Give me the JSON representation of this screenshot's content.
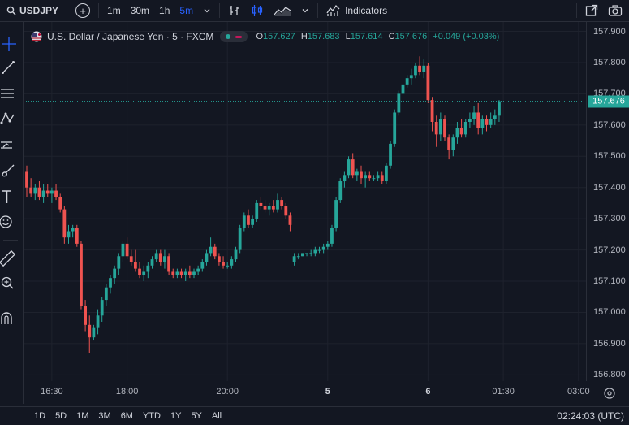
{
  "toolbar": {
    "symbol": "USDJPY",
    "intervals": [
      {
        "label": "1m",
        "active": false
      },
      {
        "label": "30m",
        "active": false
      },
      {
        "label": "1h",
        "active": false
      },
      {
        "label": "5m",
        "active": true
      }
    ],
    "indicators_label": "Indicators"
  },
  "legend": {
    "title": "U.S. Dollar / Japanese Yen · 5 · FXCM",
    "open_key": "O",
    "open": "157.627",
    "high_key": "H",
    "high": "157.683",
    "low_key": "L",
    "low": "157.614",
    "close_key": "C",
    "close": "157.676",
    "change": "+0.049 (+0.03%)"
  },
  "colors": {
    "up": "#26a69a",
    "down": "#ef5350",
    "background": "#131722",
    "grid": "#1e222d",
    "accent": "#2962ff"
  },
  "price_axis": {
    "labels": [
      "157.900",
      "157.800",
      "157.700",
      "157.600",
      "157.500",
      "157.400",
      "157.300",
      "157.200",
      "157.100",
      "157.000",
      "156.900",
      "156.800"
    ],
    "last_price": "157.676"
  },
  "time_axis": {
    "labels": [
      "16:30",
      "18:00",
      "20:00",
      "5",
      "6",
      "01:30",
      "03:00"
    ]
  },
  "bottom_bar": {
    "ranges": [
      "1D",
      "5D",
      "1M",
      "3M",
      "6M",
      "YTD",
      "1Y",
      "5Y",
      "All"
    ],
    "clock": "02:24:03 (UTC)"
  },
  "chart_data": {
    "type": "candlestick",
    "ylim": [
      156.78,
      157.93
    ],
    "x_ticks": [
      {
        "label": "16:30",
        "index": 6
      },
      {
        "label": "18:00",
        "index": 24
      },
      {
        "label": "20:00",
        "index": 48
      },
      {
        "label": "5",
        "index": 72
      },
      {
        "label": "6",
        "index": 96
      },
      {
        "label": "01:30",
        "index": 114
      },
      {
        "label": "03:00",
        "index": 132
      }
    ],
    "candles": [
      [
        157.45,
        157.47,
        157.37,
        157.4
      ],
      [
        157.4,
        157.43,
        157.37,
        157.38
      ],
      [
        157.38,
        157.41,
        157.36,
        157.4
      ],
      [
        157.4,
        157.42,
        157.36,
        157.37
      ],
      [
        157.37,
        157.41,
        157.35,
        157.39
      ],
      [
        157.39,
        157.41,
        157.37,
        157.38
      ],
      [
        157.38,
        157.4,
        157.35,
        157.39
      ],
      [
        157.39,
        157.41,
        157.36,
        157.37
      ],
      [
        157.37,
        157.38,
        157.32,
        157.33
      ],
      [
        157.33,
        157.34,
        157.22,
        157.24
      ],
      [
        157.24,
        157.28,
        157.22,
        157.26
      ],
      [
        157.26,
        157.28,
        157.24,
        157.27
      ],
      [
        157.27,
        157.28,
        157.21,
        157.22
      ],
      [
        157.22,
        157.23,
        157.01,
        157.02
      ],
      [
        157.02,
        157.04,
        156.94,
        156.96
      ],
      [
        156.96,
        156.99,
        156.87,
        156.92
      ],
      [
        156.92,
        156.96,
        156.91,
        156.95
      ],
      [
        156.95,
        157.01,
        156.93,
        156.99
      ],
      [
        156.99,
        157.05,
        156.97,
        157.04
      ],
      [
        157.04,
        157.09,
        157.02,
        157.08
      ],
      [
        157.08,
        157.12,
        157.06,
        157.11
      ],
      [
        157.11,
        157.15,
        157.09,
        157.14
      ],
      [
        157.14,
        157.19,
        157.12,
        157.18
      ],
      [
        157.18,
        157.23,
        157.16,
        157.22
      ],
      [
        157.22,
        157.24,
        157.17,
        157.18
      ],
      [
        157.18,
        157.2,
        157.15,
        157.16
      ],
      [
        157.16,
        157.2,
        157.13,
        157.14
      ],
      [
        157.14,
        157.16,
        157.11,
        157.12
      ],
      [
        157.12,
        157.15,
        157.1,
        157.13
      ],
      [
        157.13,
        157.16,
        157.11,
        157.15
      ],
      [
        157.15,
        157.18,
        157.14,
        157.17
      ],
      [
        157.17,
        157.2,
        157.16,
        157.19
      ],
      [
        157.19,
        157.2,
        157.15,
        157.16
      ],
      [
        157.16,
        157.2,
        157.14,
        157.18
      ],
      [
        157.18,
        157.19,
        157.12,
        157.13
      ],
      [
        157.13,
        157.14,
        157.11,
        157.12
      ],
      [
        157.12,
        157.14,
        157.11,
        157.13
      ],
      [
        157.13,
        157.14,
        157.11,
        157.12
      ],
      [
        157.12,
        157.14,
        157.1,
        157.13
      ],
      [
        157.13,
        157.15,
        157.11,
        157.12
      ],
      [
        157.12,
        157.14,
        157.11,
        157.13
      ],
      [
        157.13,
        157.15,
        157.12,
        157.14
      ],
      [
        157.14,
        157.17,
        157.13,
        157.16
      ],
      [
        157.16,
        157.2,
        157.15,
        157.19
      ],
      [
        157.19,
        157.24,
        157.18,
        157.21
      ],
      [
        157.21,
        157.22,
        157.17,
        157.18
      ],
      [
        157.18,
        157.19,
        157.15,
        157.16
      ],
      [
        157.16,
        157.18,
        157.14,
        157.15
      ],
      [
        157.15,
        157.16,
        157.14,
        157.15
      ],
      [
        157.15,
        157.18,
        157.14,
        157.17
      ],
      [
        157.17,
        157.21,
        157.16,
        157.2
      ],
      [
        157.2,
        157.28,
        157.19,
        157.27
      ],
      [
        157.27,
        157.32,
        157.26,
        157.31
      ],
      [
        157.31,
        157.33,
        157.27,
        157.28
      ],
      [
        157.28,
        157.31,
        157.27,
        157.3
      ],
      [
        157.3,
        157.36,
        157.29,
        157.35
      ],
      [
        157.35,
        157.37,
        157.33,
        157.34
      ],
      [
        157.34,
        157.36,
        157.32,
        157.33
      ],
      [
        157.33,
        157.35,
        157.31,
        157.34
      ],
      [
        157.34,
        157.36,
        157.32,
        157.33
      ],
      [
        157.33,
        157.38,
        157.32,
        157.36
      ],
      [
        157.36,
        157.37,
        157.33,
        157.34
      ],
      [
        157.34,
        157.35,
        157.3,
        157.31
      ],
      [
        157.31,
        157.32,
        157.26,
        157.28
      ],
      [
        157.16,
        157.19,
        157.15,
        157.18
      ],
      [
        157.18,
        157.19,
        157.17,
        157.18
      ],
      [
        157.18,
        157.19,
        157.18,
        157.19
      ],
      [
        157.19,
        157.19,
        157.18,
        157.19
      ],
      [
        157.19,
        157.2,
        157.18,
        157.19
      ],
      [
        157.19,
        157.21,
        157.18,
        157.2
      ],
      [
        157.2,
        157.21,
        157.19,
        157.2
      ],
      [
        157.2,
        157.22,
        157.19,
        157.21
      ],
      [
        157.21,
        157.23,
        157.2,
        157.22
      ],
      [
        157.22,
        157.28,
        157.21,
        157.27
      ],
      [
        157.27,
        157.37,
        157.26,
        157.36
      ],
      [
        157.36,
        157.43,
        157.35,
        157.42
      ],
      [
        157.42,
        157.45,
        157.4,
        157.44
      ],
      [
        157.44,
        157.5,
        157.43,
        157.49
      ],
      [
        157.49,
        157.51,
        157.43,
        157.44
      ],
      [
        157.44,
        157.46,
        157.42,
        157.45
      ],
      [
        157.45,
        157.47,
        157.41,
        157.43
      ],
      [
        157.43,
        157.45,
        157.4,
        157.44
      ],
      [
        157.44,
        157.45,
        157.42,
        157.43
      ],
      [
        157.43,
        157.44,
        157.42,
        157.43
      ],
      [
        157.43,
        157.45,
        157.42,
        157.44
      ],
      [
        157.44,
        157.45,
        157.41,
        157.42
      ],
      [
        157.42,
        157.48,
        157.41,
        157.47
      ],
      [
        157.47,
        157.55,
        157.46,
        157.54
      ],
      [
        157.54,
        157.65,
        157.53,
        157.64
      ],
      [
        157.64,
        157.71,
        157.63,
        157.7
      ],
      [
        157.7,
        157.74,
        157.69,
        157.73
      ],
      [
        157.73,
        157.76,
        157.72,
        157.75
      ],
      [
        157.75,
        157.78,
        157.73,
        157.76
      ],
      [
        157.76,
        157.8,
        157.75,
        157.79
      ],
      [
        157.79,
        157.82,
        157.76,
        157.77
      ],
      [
        157.77,
        157.81,
        157.75,
        157.79
      ],
      [
        157.79,
        157.8,
        157.67,
        157.68
      ],
      [
        157.68,
        157.69,
        157.58,
        157.61
      ],
      [
        157.61,
        157.63,
        157.53,
        157.57
      ],
      [
        157.57,
        157.64,
        157.55,
        157.62
      ],
      [
        157.62,
        157.63,
        157.55,
        157.56
      ],
      [
        157.56,
        157.57,
        157.49,
        157.52
      ],
      [
        157.52,
        157.57,
        157.5,
        157.56
      ],
      [
        157.56,
        157.61,
        157.54,
        157.59
      ],
      [
        157.59,
        157.62,
        157.56,
        157.57
      ],
      [
        157.57,
        157.62,
        157.56,
        157.61
      ],
      [
        157.61,
        157.64,
        157.59,
        157.62
      ],
      [
        157.62,
        157.66,
        157.6,
        157.64
      ],
      [
        157.64,
        157.67,
        157.57,
        157.59
      ],
      [
        157.59,
        157.63,
        157.57,
        157.62
      ],
      [
        157.62,
        157.63,
        157.58,
        157.6
      ],
      [
        157.6,
        157.64,
        157.59,
        157.62
      ],
      [
        157.62,
        157.65,
        157.6,
        157.63
      ],
      [
        157.63,
        157.68,
        157.61,
        157.676
      ]
    ]
  }
}
